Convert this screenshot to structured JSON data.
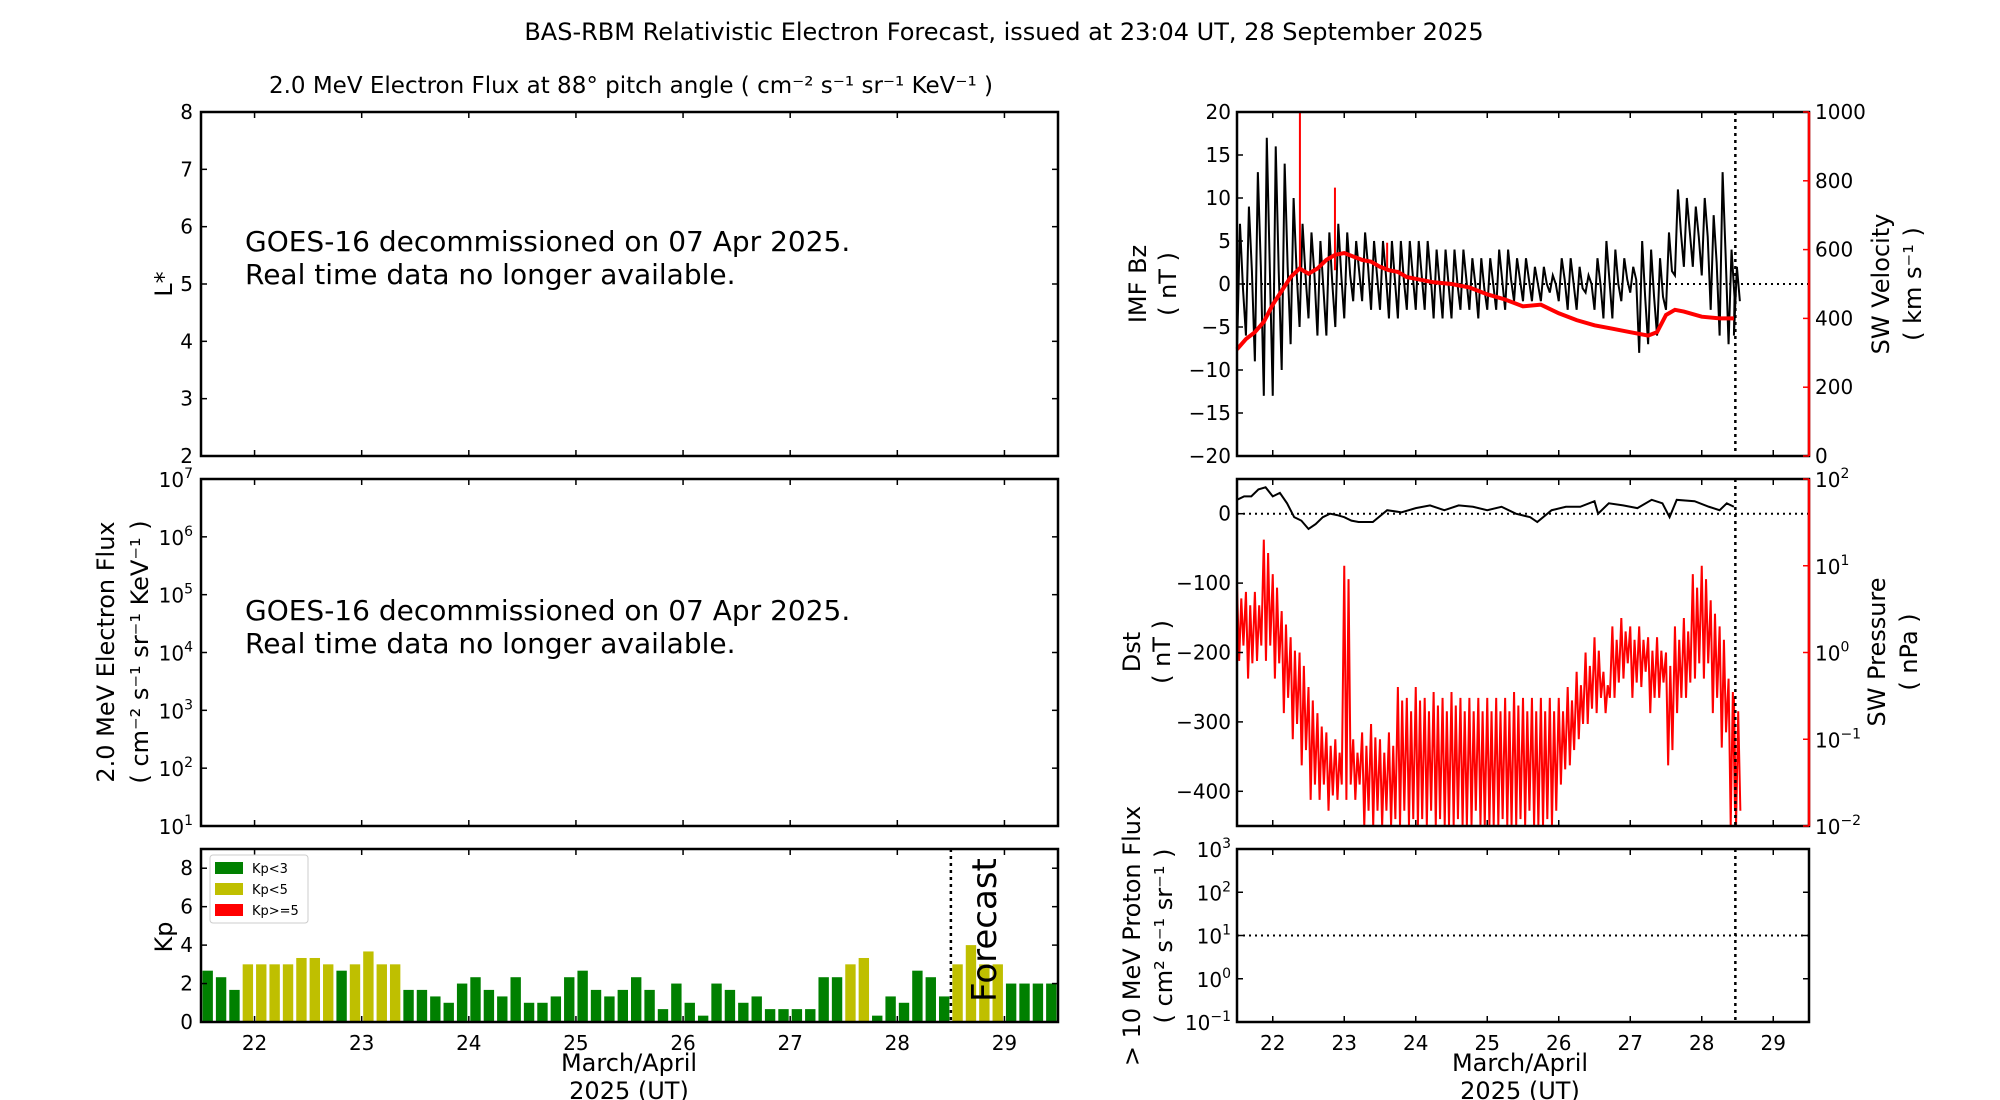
{
  "title": "BAS-RBM Relativistic Electron Forecast, issued at 23:04 UT, 28 September 2025",
  "subtitle": "2.0 MeV Electron Flux at 88° pitch angle ( cm⁻² s⁻¹ sr⁻¹ KeV⁻¹ )",
  "notice_line1": "GOES-16 decommissioned on 07 Apr 2025.",
  "notice_line2": "Real time data no longer available.",
  "xlabel_line1": "March/April",
  "xlabel_line2": "2025 (UT)",
  "colors": {
    "kp_low": "#008000",
    "kp_mid": "#bfbf00",
    "kp_high": "#ff0000",
    "secondary_axis": "#ff0000",
    "forecast_text": "#c8c8c8"
  },
  "chart_data": [
    {
      "id": "lstar",
      "type": "heatmap",
      "ylabel": "L*",
      "xlim": [
        21.5,
        29.5
      ],
      "ylim": [
        2,
        8
      ],
      "yticks": [
        "2",
        "3",
        "4",
        "5",
        "6",
        "7",
        "8"
      ],
      "xticks": [
        22,
        23,
        24,
        25,
        26,
        27,
        28,
        29
      ],
      "empty": true
    },
    {
      "id": "electron_flux",
      "type": "line",
      "ylabel_line1": "2.0 MeV Electron Flux",
      "ylabel_line2": "( cm⁻² s⁻¹ sr⁻¹ KeV⁻¹ )",
      "yscale": "log",
      "ylim_exponents": [
        1,
        7
      ],
      "xlim": [
        21.5,
        29.5
      ],
      "empty": true
    },
    {
      "id": "kp",
      "type": "bar",
      "ylabel": "Kp",
      "xlim": [
        21.5,
        29.5
      ],
      "ylim": [
        0,
        9
      ],
      "yticks": [
        "0",
        "2",
        "4",
        "6",
        "8"
      ],
      "xticks": [
        "22",
        "23",
        "24",
        "25",
        "26",
        "27",
        "28",
        "29"
      ],
      "legend": {
        "placement": "top-left",
        "entries": [
          "Kp<3",
          "Kp<5",
          "Kp>=5"
        ]
      },
      "forecast_label": "Forecast",
      "forecast_start": 28.5,
      "bar_start": 21.5,
      "bar_hours": 3,
      "values": [
        2.67,
        2.33,
        1.67,
        3,
        3,
        3,
        3,
        3.33,
        3.33,
        3,
        2.67,
        3,
        3.67,
        3,
        3,
        1.67,
        1.67,
        1.33,
        1,
        2,
        2.33,
        1.67,
        1.33,
        2.33,
        1,
        1,
        1.33,
        2.33,
        2.67,
        1.67,
        1.33,
        1.67,
        2.33,
        1.67,
        0.67,
        2,
        1,
        0.33,
        2,
        1.67,
        1,
        1.33,
        0.67,
        0.67,
        0.67,
        0.67,
        2.33,
        2.33,
        3,
        3.33,
        0.33,
        1.33,
        1,
        2.67,
        2.33,
        1.33,
        3,
        4,
        3,
        3,
        2,
        2,
        2,
        2
      ]
    },
    {
      "id": "imf_sw",
      "type": "line",
      "ylabel_line1": "IMF Bz",
      "ylabel_line2": "( nT )",
      "ylabel2_line1": "SW Velocity",
      "ylabel2_line2": "( km s⁻¹ )",
      "xlim": [
        21.5,
        29.5
      ],
      "ylim": [
        -20,
        20
      ],
      "yticks": [
        "−20",
        "−15",
        "−10",
        "−5",
        "0",
        "5",
        "10",
        "15",
        "20"
      ],
      "y2lim": [
        0,
        1000
      ],
      "y2ticks": [
        "0",
        "200",
        "400",
        "600",
        "800",
        "1000"
      ],
      "now": 28.47,
      "bz_range": [
        [
          21.5,
          -8,
          7
        ],
        [
          21.625,
          -6,
          9
        ],
        [
          21.75,
          -9,
          13
        ],
        [
          21.875,
          -13,
          17
        ],
        [
          22.0,
          -13,
          16
        ],
        [
          22.125,
          -10,
          14
        ],
        [
          22.25,
          -7,
          10
        ],
        [
          22.375,
          -5,
          7
        ],
        [
          22.5,
          -4,
          6
        ],
        [
          22.625,
          -6,
          5
        ],
        [
          22.75,
          -6,
          6
        ],
        [
          22.875,
          -5,
          7
        ],
        [
          23.0,
          -4,
          6
        ],
        [
          23.125,
          -2,
          5
        ],
        [
          23.25,
          -2,
          6
        ],
        [
          23.375,
          -3,
          5
        ],
        [
          23.5,
          -3,
          5
        ],
        [
          23.625,
          -4,
          5
        ],
        [
          23.75,
          -4,
          5
        ],
        [
          23.875,
          -3,
          5
        ],
        [
          24.0,
          -3,
          5
        ],
        [
          24.125,
          -3,
          5
        ],
        [
          24.25,
          -4,
          4
        ],
        [
          24.375,
          -4,
          4
        ],
        [
          24.5,
          -4,
          4
        ],
        [
          24.625,
          -3,
          4
        ],
        [
          24.75,
          -3,
          3
        ],
        [
          24.875,
          -4,
          3
        ],
        [
          25.0,
          -3,
          3
        ],
        [
          25.125,
          -3,
          4
        ],
        [
          25.25,
          -3,
          4
        ],
        [
          25.375,
          -2,
          3
        ],
        [
          25.5,
          -2,
          3
        ],
        [
          25.625,
          -2,
          2
        ],
        [
          25.75,
          -2,
          2
        ],
        [
          25.875,
          -1,
          1
        ],
        [
          26.0,
          -2,
          3
        ],
        [
          26.125,
          -3,
          3
        ],
        [
          26.25,
          -3,
          2
        ],
        [
          26.375,
          -1,
          1
        ],
        [
          26.5,
          -3,
          3
        ],
        [
          26.625,
          -4,
          5
        ],
        [
          26.75,
          -4,
          4
        ],
        [
          26.875,
          -2,
          3
        ],
        [
          27.0,
          -1,
          2
        ],
        [
          27.125,
          -8,
          5
        ],
        [
          27.25,
          -7,
          4
        ],
        [
          27.375,
          -6,
          3
        ],
        [
          27.5,
          -3,
          6
        ],
        [
          27.625,
          1,
          11
        ],
        [
          27.75,
          2,
          10
        ],
        [
          27.875,
          2,
          9
        ],
        [
          28.0,
          1,
          10
        ],
        [
          28.125,
          -3,
          8
        ],
        [
          28.25,
          -6,
          13
        ],
        [
          28.375,
          -7,
          4
        ],
        [
          28.45,
          -6,
          2
        ]
      ],
      "sw_velocity": [
        [
          21.5,
          310
        ],
        [
          21.625,
          340
        ],
        [
          21.75,
          360
        ],
        [
          21.875,
          390
        ],
        [
          22.0,
          440
        ],
        [
          22.125,
          480
        ],
        [
          22.25,
          520
        ],
        [
          22.375,
          545
        ],
        [
          22.5,
          530
        ],
        [
          22.625,
          545
        ],
        [
          22.75,
          570
        ],
        [
          22.875,
          585
        ],
        [
          23.0,
          590
        ],
        [
          23.125,
          580
        ],
        [
          23.25,
          570
        ],
        [
          23.375,
          565
        ],
        [
          23.5,
          550
        ],
        [
          23.625,
          540
        ],
        [
          23.75,
          535
        ],
        [
          23.875,
          520
        ],
        [
          24.0,
          515
        ],
        [
          24.25,
          505
        ],
        [
          24.5,
          500
        ],
        [
          24.75,
          490
        ],
        [
          25.0,
          470
        ],
        [
          25.25,
          455
        ],
        [
          25.5,
          435
        ],
        [
          25.75,
          440
        ],
        [
          26.0,
          415
        ],
        [
          26.25,
          395
        ],
        [
          26.5,
          380
        ],
        [
          26.75,
          370
        ],
        [
          27.0,
          360
        ],
        [
          27.25,
          350
        ],
        [
          27.375,
          360
        ],
        [
          27.5,
          410
        ],
        [
          27.625,
          425
        ],
        [
          27.75,
          420
        ],
        [
          28.0,
          405
        ],
        [
          28.25,
          400
        ],
        [
          28.45,
          400
        ]
      ],
      "sw_velocity_spikes": [
        [
          22.38,
          1000
        ],
        [
          22.87,
          780
        ],
        [
          23.6,
          620
        ]
      ]
    },
    {
      "id": "dst_pressure",
      "type": "line",
      "ylabel_line1": "Dst",
      "ylabel_line2": "( nT )",
      "ylabel2_line1": "SW Pressure",
      "ylabel2_line2": "( nPa )",
      "xlim": [
        21.5,
        29.5
      ],
      "ylim": [
        -450,
        50
      ],
      "yticks": [
        0,
        -100,
        -200,
        -300,
        -400
      ],
      "ytick_labels": [
        "0",
        "−100",
        "−200",
        "−300",
        "−400"
      ],
      "y2scale": "log",
      "y2lim_exponents": [
        -2,
        2
      ],
      "now": 28.47,
      "dst": [
        [
          21.5,
          20
        ],
        [
          21.6,
          25
        ],
        [
          21.7,
          25
        ],
        [
          21.8,
          35
        ],
        [
          21.9,
          38
        ],
        [
          22.0,
          25
        ],
        [
          22.1,
          30
        ],
        [
          22.2,
          15
        ],
        [
          22.3,
          -5
        ],
        [
          22.4,
          -10
        ],
        [
          22.5,
          -22
        ],
        [
          22.6,
          -15
        ],
        [
          22.7,
          -5
        ],
        [
          22.8,
          0
        ],
        [
          22.9,
          -2
        ],
        [
          23.0,
          -5
        ],
        [
          23.1,
          -10
        ],
        [
          23.2,
          -12
        ],
        [
          23.4,
          -12
        ],
        [
          23.6,
          5
        ],
        [
          23.8,
          2
        ],
        [
          24.0,
          8
        ],
        [
          24.2,
          12
        ],
        [
          24.4,
          5
        ],
        [
          24.6,
          12
        ],
        [
          24.8,
          10
        ],
        [
          25.0,
          5
        ],
        [
          25.2,
          10
        ],
        [
          25.4,
          0
        ],
        [
          25.6,
          -5
        ],
        [
          25.7,
          -12
        ],
        [
          25.9,
          5
        ],
        [
          26.1,
          10
        ],
        [
          26.3,
          10
        ],
        [
          26.5,
          18
        ],
        [
          26.55,
          0
        ],
        [
          26.7,
          15
        ],
        [
          26.9,
          12
        ],
        [
          27.1,
          8
        ],
        [
          27.3,
          20
        ],
        [
          27.45,
          15
        ],
        [
          27.55,
          -5
        ],
        [
          27.65,
          20
        ],
        [
          27.9,
          18
        ],
        [
          28.1,
          10
        ],
        [
          28.25,
          5
        ],
        [
          28.35,
          15
        ],
        [
          28.45,
          10
        ]
      ],
      "pressure_range": [
        [
          21.5,
          0.8,
          6
        ],
        [
          21.625,
          0.5,
          5
        ],
        [
          21.75,
          0.8,
          5
        ],
        [
          21.875,
          0.8,
          20
        ],
        [
          22.0,
          0.5,
          8
        ],
        [
          22.125,
          0.2,
          3
        ],
        [
          22.25,
          0.1,
          1.5
        ],
        [
          22.375,
          0.05,
          1
        ],
        [
          22.5,
          0.02,
          0.4
        ],
        [
          22.625,
          0.02,
          0.2
        ],
        [
          22.75,
          0.015,
          0.12
        ],
        [
          22.875,
          0.02,
          0.1
        ],
        [
          23.0,
          0.02,
          10
        ],
        [
          23.125,
          0.02,
          0.1
        ],
        [
          23.25,
          0.01,
          0.12
        ],
        [
          23.375,
          0.01,
          0.15
        ],
        [
          23.5,
          0.01,
          0.1
        ],
        [
          23.625,
          0.008,
          0.12
        ],
        [
          23.75,
          0.01,
          0.4
        ],
        [
          23.875,
          0.008,
          0.3
        ],
        [
          24.0,
          0.008,
          0.4
        ],
        [
          24.125,
          0.01,
          0.3
        ],
        [
          24.25,
          0.008,
          0.35
        ],
        [
          24.375,
          0.005,
          0.3
        ],
        [
          24.5,
          0.008,
          0.35
        ],
        [
          24.625,
          0.006,
          0.3
        ],
        [
          24.75,
          0.01,
          0.3
        ],
        [
          24.875,
          0.005,
          0.3
        ],
        [
          25.0,
          0.006,
          0.3
        ],
        [
          25.125,
          0.008,
          0.3
        ],
        [
          25.25,
          0.005,
          0.3
        ],
        [
          25.375,
          0.008,
          0.35
        ],
        [
          25.5,
          0.01,
          0.3
        ],
        [
          25.625,
          0.006,
          0.3
        ],
        [
          25.75,
          0.008,
          0.3
        ],
        [
          25.875,
          0.01,
          0.3
        ],
        [
          26.0,
          0.03,
          0.3
        ],
        [
          26.125,
          0.05,
          0.4
        ],
        [
          26.25,
          0.1,
          0.6
        ],
        [
          26.375,
          0.15,
          1.0
        ],
        [
          26.5,
          0.2,
          1.5
        ],
        [
          26.625,
          0.2,
          0.6
        ],
        [
          26.75,
          0.3,
          2
        ],
        [
          26.875,
          0.5,
          2.5
        ],
        [
          27.0,
          0.3,
          2
        ],
        [
          27.125,
          0.4,
          2
        ],
        [
          27.25,
          0.2,
          1.5
        ],
        [
          27.375,
          0.3,
          1.5
        ],
        [
          27.5,
          0.05,
          1
        ],
        [
          27.625,
          0.2,
          2
        ],
        [
          27.75,
          0.3,
          2.5
        ],
        [
          27.875,
          0.5,
          8
        ],
        [
          28.0,
          0.5,
          10
        ],
        [
          28.125,
          0.2,
          4
        ],
        [
          28.25,
          0.08,
          2
        ],
        [
          28.375,
          0.01,
          0.5
        ],
        [
          28.45,
          0.01,
          0.3
        ]
      ]
    },
    {
      "id": "proton_flux",
      "type": "line",
      "ylabel_line1": "> 10 MeV Proton Flux",
      "ylabel_line2": "( cm² s⁻¹ sr⁻¹ )",
      "xlim": [
        21.5,
        29.5
      ],
      "yscale": "log",
      "ylim_exponents": [
        -1,
        3
      ],
      "threshold": 10,
      "now": 28.47,
      "xticks": [
        "22",
        "23",
        "24",
        "25",
        "26",
        "27",
        "28",
        "29"
      ],
      "empty": true
    }
  ]
}
